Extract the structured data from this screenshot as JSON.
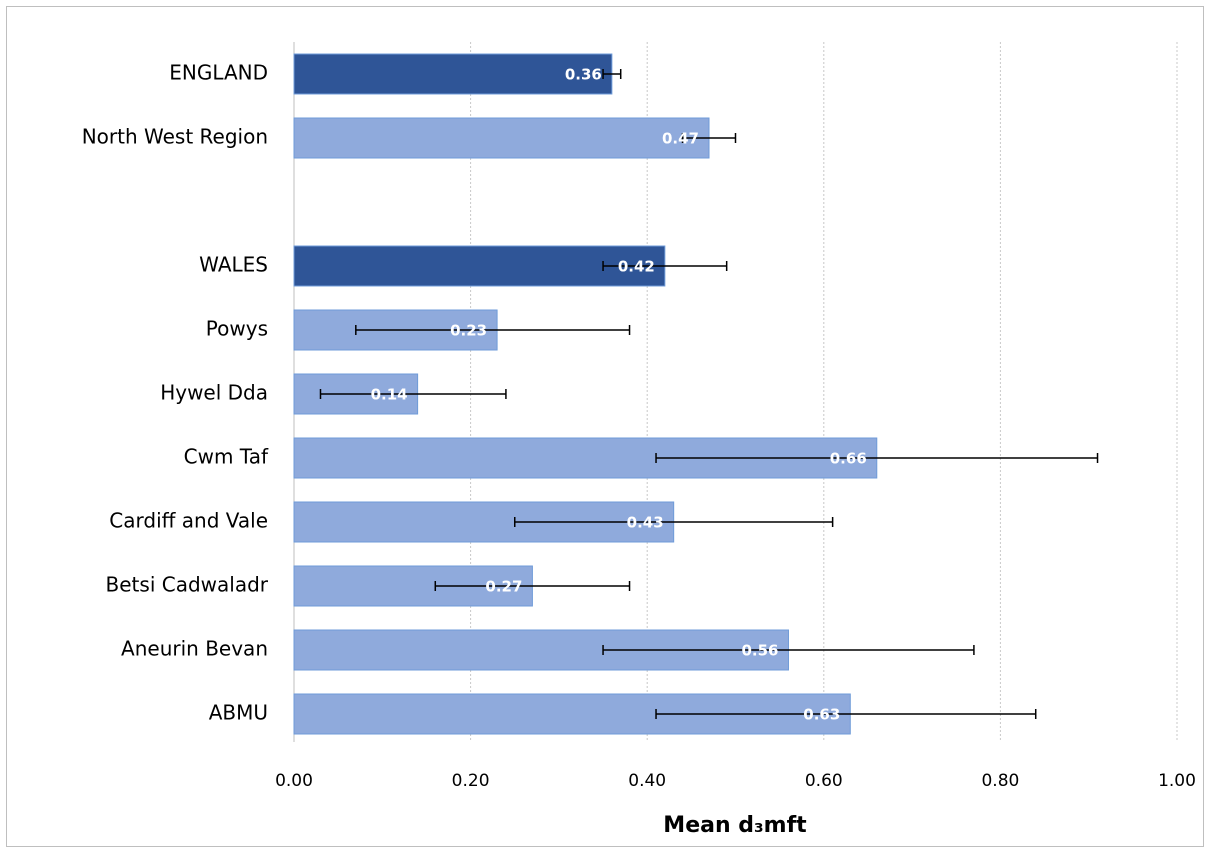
{
  "chart_data": {
    "type": "bar",
    "orientation": "horizontal",
    "xlabel": "Mean d₃mft",
    "categories": [
      "ENGLAND",
      "North West Region",
      null,
      "WALES",
      "Powys",
      "Hywel Dda",
      "Cwm Taf",
      "Cardiff and Vale",
      "Betsi Cadwaladr",
      "Aneurin Bevan",
      "ABMU"
    ],
    "values": [
      0.36,
      0.47,
      null,
      0.42,
      0.23,
      0.14,
      0.66,
      0.43,
      0.27,
      0.56,
      0.63
    ],
    "lower": [
      0.35,
      0.44,
      null,
      0.35,
      0.07,
      0.03,
      0.41,
      0.25,
      0.16,
      0.35,
      0.41
    ],
    "upper": [
      0.37,
      0.5,
      null,
      0.49,
      0.38,
      0.24,
      0.91,
      0.61,
      0.38,
      0.77,
      0.84
    ],
    "colors": [
      "#2f5597",
      "#8faadc",
      null,
      "#2f5597",
      "#8faadc",
      "#8faadc",
      "#8faadc",
      "#8faadc",
      "#8faadc",
      "#8faadc",
      "#8faadc"
    ],
    "xlim": [
      0,
      1
    ],
    "xticks": [
      {
        "value": 0,
        "label": "0.00"
      },
      {
        "value": 0.2,
        "label": "0.20"
      },
      {
        "value": 0.4,
        "label": "0.40"
      },
      {
        "value": 0.6,
        "label": "0.60"
      },
      {
        "value": 0.8,
        "label": "0.80"
      },
      {
        "value": 1,
        "label": "1.00"
      }
    ],
    "grid": true
  }
}
